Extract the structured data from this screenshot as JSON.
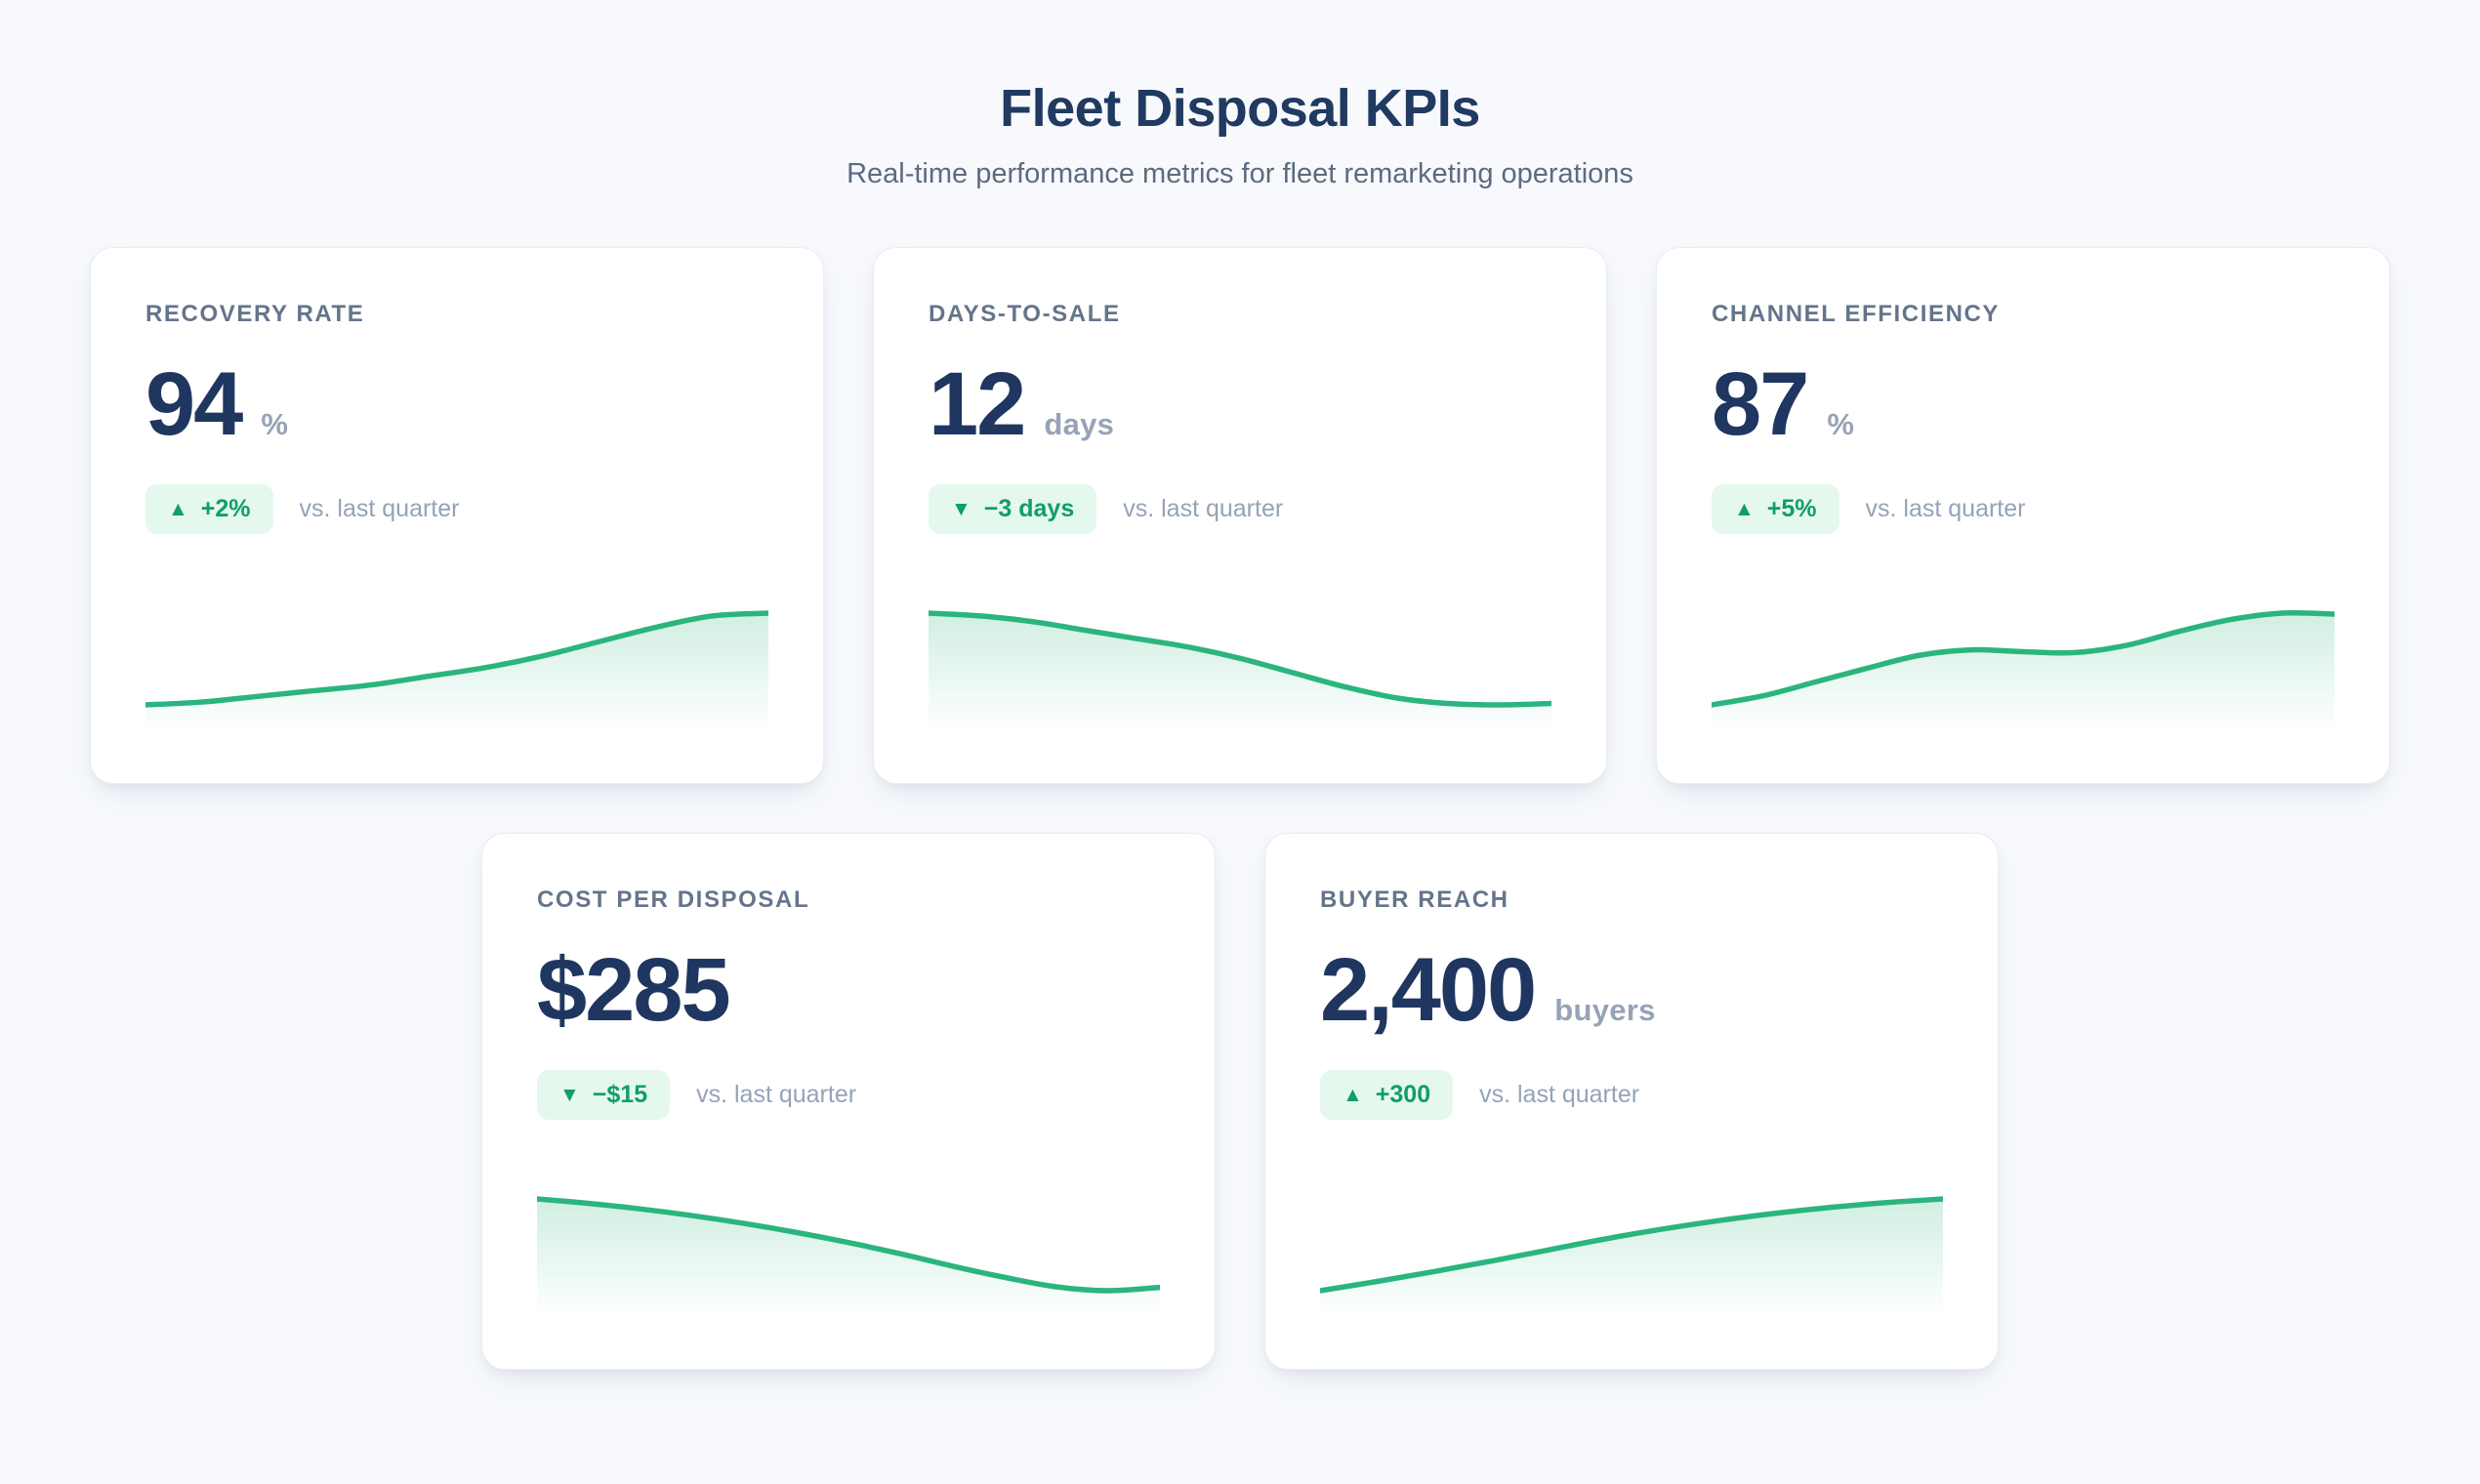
{
  "header": {
    "title": "Fleet Disposal KPIs",
    "subtitle": "Real-time performance metrics for fleet remarketing operations"
  },
  "colors": {
    "page_bg": "#f7f9fc",
    "card_bg": "#ffffff",
    "card_border": "#e8edf5",
    "value_navy": "#1f3760",
    "label_slate": "#64748b",
    "muted_gray": "#94a3b8",
    "spark_green": "#2bb57e",
    "badge_bg": "#e5f8ee",
    "badge_text": "#0f9f66"
  },
  "icons": {
    "trend-up-icon": "▲",
    "trend-down-icon": "▼"
  },
  "cards": [
    {
      "label": "RECOVERY RATE",
      "value": "94",
      "unit": "%",
      "trend": "up",
      "delta": "+2%",
      "note": "vs. last quarter",
      "sparkline": [
        62,
        63,
        65,
        67,
        69,
        72,
        75,
        79,
        84,
        89,
        93,
        94
      ]
    },
    {
      "label": "DAYS-TO-SALE",
      "value": "12",
      "unit": "days",
      "trend": "down",
      "delta": "−3 days",
      "note": "vs. last quarter",
      "sparkline": [
        15.2,
        15.1,
        14.9,
        14.6,
        14.3,
        14.0,
        13.6,
        13.1,
        12.6,
        12.2,
        12.0,
        11.95,
        12.0
      ]
    },
    {
      "label": "CHANNEL EFFICIENCY",
      "value": "87",
      "unit": "%",
      "trend": "up",
      "delta": "+5%",
      "note": "vs. last quarter",
      "sparkline": [
        78,
        79,
        80.5,
        82,
        83.4,
        84,
        83.8,
        83.7,
        84.5,
        86,
        87.3,
        88,
        87.9
      ]
    },
    {
      "label": "COST PER DISPOSAL",
      "value": "$285",
      "unit": "",
      "trend": "down",
      "delta": "−$15",
      "note": "vs. last quarter",
      "sparkline": [
        300,
        299.2,
        298.2,
        297,
        295.6,
        294,
        292.2,
        290.2,
        288,
        286,
        284.3,
        283.6,
        284.2
      ]
    },
    {
      "label": "BUYER REACH",
      "value": "2,400",
      "unit": "buyers",
      "trend": "up",
      "delta": "+300",
      "note": "vs. last quarter",
      "sparkline": [
        2100,
        2130,
        2162,
        2196,
        2232,
        2268,
        2300,
        2328,
        2352,
        2372,
        2388,
        2400
      ]
    }
  ]
}
